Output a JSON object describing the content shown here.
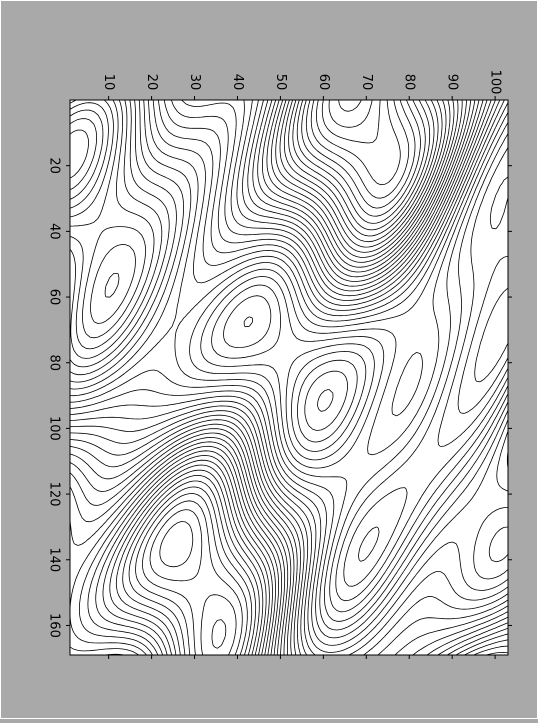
{
  "chart_data": {
    "type": "contour",
    "xlim": [
      1,
      103
    ],
    "xticks": [
      10,
      20,
      30,
      40,
      50,
      60,
      70,
      80,
      90,
      100
    ],
    "ylim": [
      0,
      169
    ],
    "yticks": [
      20,
      40,
      60,
      80,
      100,
      120,
      140,
      160
    ],
    "color": "#000000"
  }
}
